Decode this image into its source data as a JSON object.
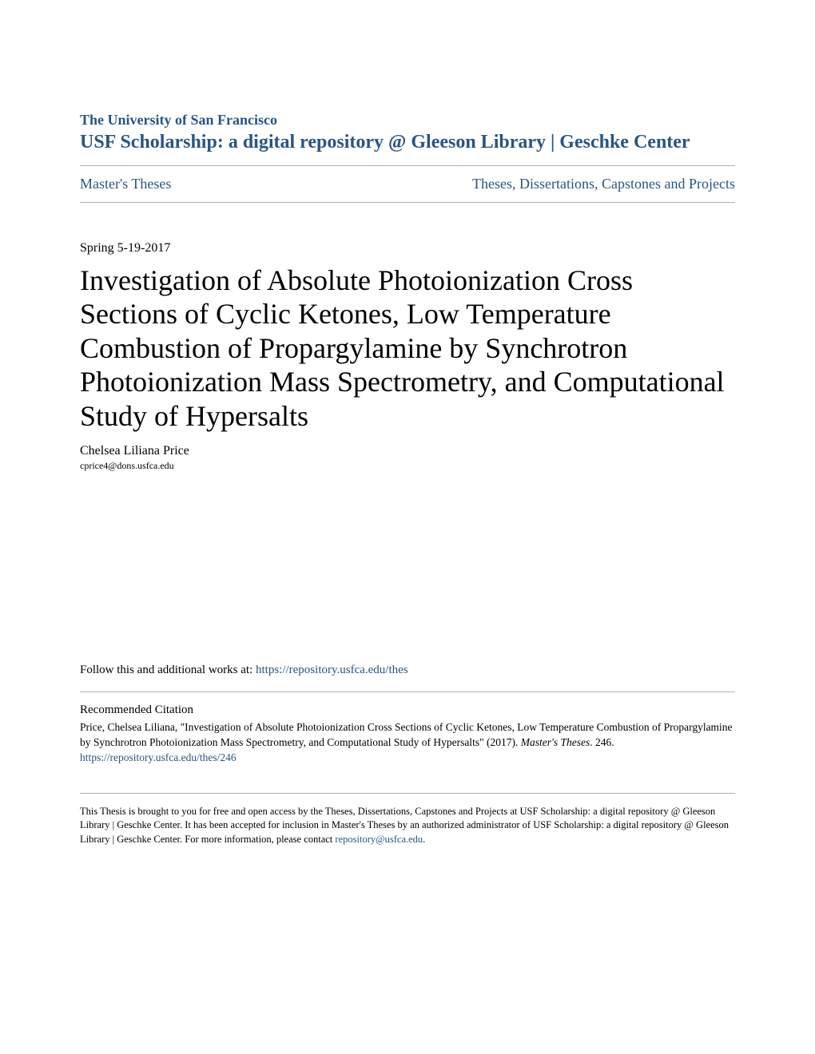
{
  "header": {
    "institution": "The University of San Francisco",
    "repository": "USF Scholarship: a digital repository @ Gleeson Library | Geschke Center"
  },
  "nav": {
    "left": "Master's Theses",
    "right": "Theses, Dissertations, Capstones and Projects"
  },
  "document": {
    "date": "Spring 5-19-2017",
    "title": "Investigation of Absolute Photoionization Cross Sections of Cyclic Ketones, Low Temperature Combustion of Propargylamine by Synchrotron Photoionization Mass Spectrometry, and Computational Study of Hypersalts",
    "author_name": "Chelsea Liliana Price",
    "author_email": "cprice4@dons.usfca.edu"
  },
  "follow": {
    "prefix": "Follow this and additional works at: ",
    "url": "https://repository.usfca.edu/thes"
  },
  "citation": {
    "heading": "Recommended Citation",
    "text_part1": "Price, Chelsea Liliana, \"Investigation of Absolute Photoionization Cross Sections of Cyclic Ketones, Low Temperature Combustion of Propargylamine by Synchrotron Photoionization Mass Spectrometry, and Computational Study of Hypersalts\" (2017). ",
    "text_italic": "Master's Theses",
    "text_part2": ". 246.",
    "url": "https://repository.usfca.edu/thes/246"
  },
  "footer": {
    "text_part1": "This Thesis is brought to you for free and open access by the Theses, Dissertations, Capstones and Projects at USF Scholarship: a digital repository @ Gleeson Library | Geschke Center. It has been accepted for inclusion in Master's Theses by an authorized administrator of USF Scholarship: a digital repository @ Gleeson Library | Geschke Center. For more information, please contact ",
    "contact_link": "repository@usfca.edu",
    "text_part2": "."
  },
  "colors": {
    "link": "#2a5580",
    "text": "#000000",
    "divider": "#b0b0b0",
    "background": "#ffffff"
  }
}
